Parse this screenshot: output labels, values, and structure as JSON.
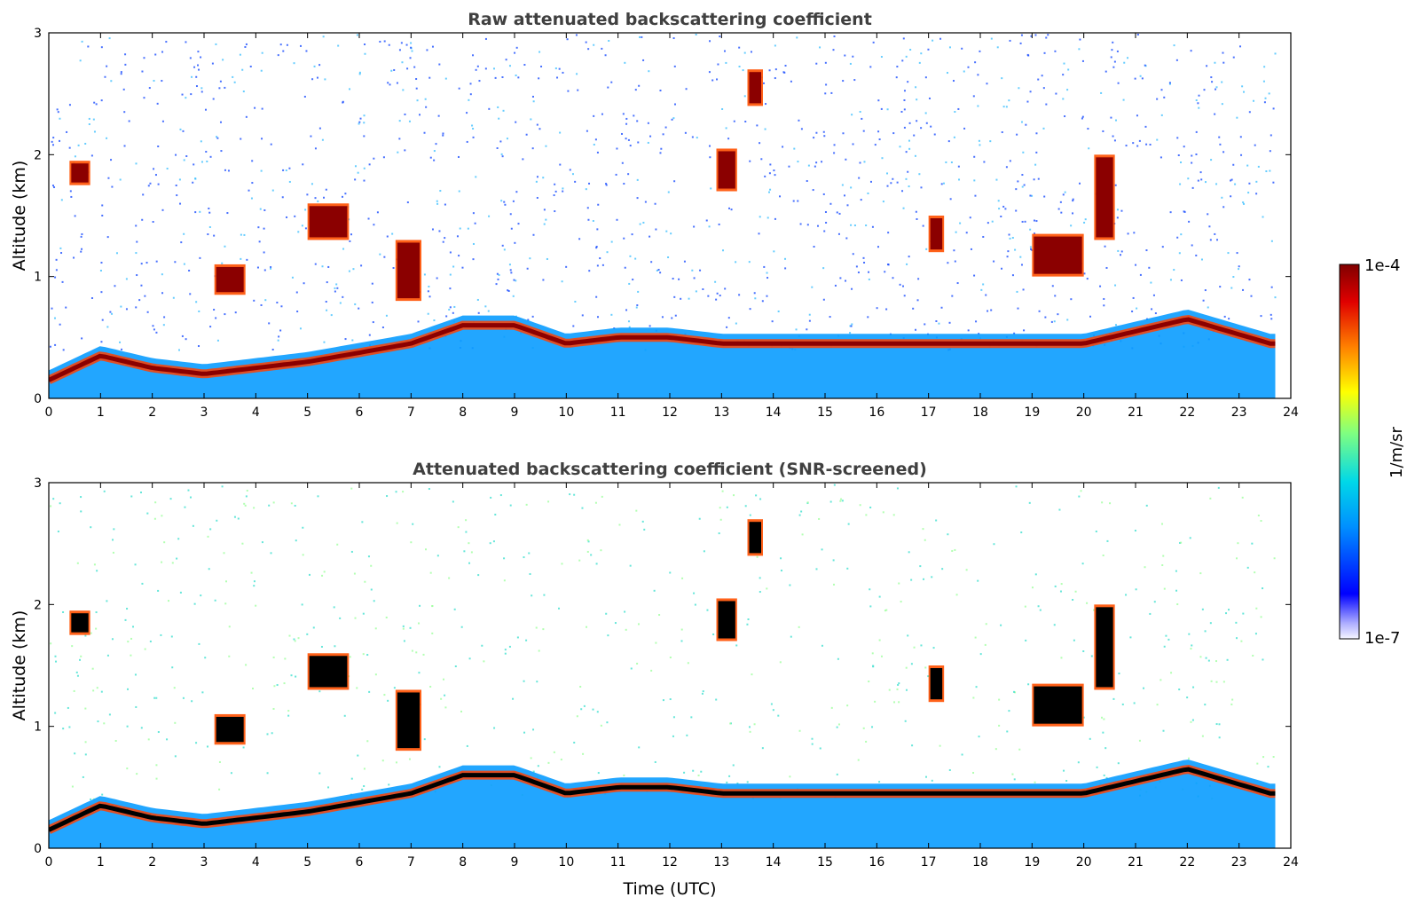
{
  "chart_data": [
    {
      "type": "heatmap",
      "title": "Raw attenuated backscattering coefficient",
      "xlabel": "",
      "ylabel": "Altitude (km)",
      "xlim": [
        0,
        24
      ],
      "ylim": [
        0,
        3
      ],
      "xticks": [
        "0",
        "1",
        "2",
        "3",
        "4",
        "5",
        "6",
        "7",
        "8",
        "9",
        "10",
        "11",
        "12",
        "13",
        "14",
        "15",
        "16",
        "17",
        "18",
        "19",
        "20",
        "21",
        "22",
        "23",
        "24"
      ],
      "yticks": [
        "0",
        "1",
        "2",
        "3"
      ],
      "layers": [
        {
          "name": "aerosol-boundary-layer",
          "points": [
            [
              0,
              0.15
            ],
            [
              1,
              0.35
            ],
            [
              2,
              0.25
            ],
            [
              3,
              0.2
            ],
            [
              5,
              0.3
            ],
            [
              7,
              0.45
            ],
            [
              8,
              0.6
            ],
            [
              9,
              0.6
            ],
            [
              10,
              0.45
            ],
            [
              11,
              0.5
            ],
            [
              12,
              0.5
            ],
            [
              13,
              0.45
            ],
            [
              16,
              0.45
            ],
            [
              20,
              0.45
            ],
            [
              22,
              0.65
            ],
            [
              23.6,
              0.45
            ]
          ]
        },
        {
          "name": "cloud-segments",
          "items": [
            [
              0.4,
              0.8,
              1.75,
              1.95
            ],
            [
              3.2,
              3.8,
              0.85,
              1.1
            ],
            [
              5,
              5.8,
              1.3,
              1.6
            ],
            [
              6.7,
              7.2,
              0.8,
              1.3
            ],
            [
              12.9,
              13.3,
              1.7,
              2.05
            ],
            [
              13.5,
              13.8,
              2.4,
              2.7
            ],
            [
              17,
              17.3,
              1.2,
              1.5
            ],
            [
              19,
              20,
              1.0,
              1.35
            ],
            [
              20.2,
              20.6,
              1.3,
              2.0
            ]
          ]
        }
      ]
    },
    {
      "type": "heatmap",
      "title": "Attenuated backscattering coefficient (SNR-screened)",
      "xlabel": "Time (UTC)",
      "ylabel": "Altitude (km)",
      "xlim": [
        0,
        24
      ],
      "ylim": [
        0,
        3
      ],
      "xticks": [
        "0",
        "1",
        "2",
        "3",
        "4",
        "5",
        "6",
        "7",
        "8",
        "9",
        "10",
        "11",
        "12",
        "13",
        "14",
        "15",
        "16",
        "17",
        "18",
        "19",
        "20",
        "21",
        "22",
        "23",
        "24"
      ],
      "yticks": [
        "0",
        "1",
        "2",
        "3"
      ],
      "layers": [
        {
          "name": "aerosol-boundary-layer",
          "points": [
            [
              0,
              0.15
            ],
            [
              1,
              0.35
            ],
            [
              2,
              0.25
            ],
            [
              3,
              0.2
            ],
            [
              5,
              0.3
            ],
            [
              7,
              0.45
            ],
            [
              8,
              0.6
            ],
            [
              9,
              0.6
            ],
            [
              10,
              0.45
            ],
            [
              11,
              0.5
            ],
            [
              12,
              0.5
            ],
            [
              13,
              0.45
            ],
            [
              16,
              0.45
            ],
            [
              20,
              0.45
            ],
            [
              22,
              0.65
            ],
            [
              23.6,
              0.45
            ]
          ]
        },
        {
          "name": "cloud-segments",
          "items": [
            [
              0.4,
              0.8,
              1.75,
              1.95
            ],
            [
              3.2,
              3.8,
              0.85,
              1.1
            ],
            [
              5,
              5.8,
              1.3,
              1.6
            ],
            [
              6.7,
              7.2,
              0.8,
              1.3
            ],
            [
              12.9,
              13.3,
              1.7,
              2.05
            ],
            [
              13.5,
              13.8,
              2.4,
              2.7
            ],
            [
              17,
              17.3,
              1.2,
              1.5
            ],
            [
              19,
              20,
              1.0,
              1.35
            ],
            [
              20.2,
              20.6,
              1.3,
              2.0
            ]
          ]
        }
      ]
    }
  ],
  "colorbar": {
    "label": "1/m/sr",
    "max_label": "1e-4",
    "min_label": "1e-7",
    "colormap": [
      "#ffffff",
      "#0000ff",
      "#00a0ff",
      "#00e0e0",
      "#7fff7f",
      "#ffff00",
      "#ff8000",
      "#ff0000",
      "#800000"
    ]
  },
  "colors": {
    "background_noise": "#3366ff",
    "boundary_layer": "#00bfff",
    "cloud_core": "#8b0000",
    "screened_core": "#000000"
  }
}
